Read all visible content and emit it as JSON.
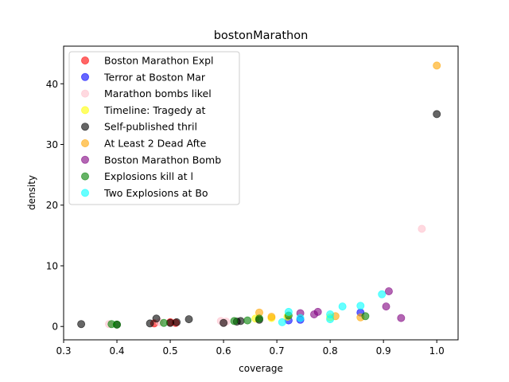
{
  "chart_data": {
    "type": "scatter",
    "title": "bostonMarathon",
    "xlabel": "coverage",
    "ylabel": "density",
    "xlim": [
      0.3,
      1.04
    ],
    "ylim": [
      -2.2,
      46.2
    ],
    "xticks": [
      "0.3",
      "0.4",
      "0.5",
      "0.6",
      "0.7",
      "0.8",
      "0.9",
      "1.0"
    ],
    "yticks": [
      "0",
      "10",
      "20",
      "30",
      "40"
    ],
    "legend_position": "top-left",
    "marker_alpha": 0.6,
    "series": [
      {
        "name": "Boston Marathon Expl",
        "color": "#ff0000",
        "points": [
          [
            0.47,
            0.5
          ],
          [
            0.5,
            0.7
          ],
          [
            0.51,
            0.6
          ]
        ]
      },
      {
        "name": "Terror at Boston Mar",
        "color": "#0000ff",
        "points": [
          [
            0.722,
            1.0
          ],
          [
            0.744,
            1.1
          ],
          [
            0.857,
            2.3
          ]
        ]
      },
      {
        "name": "Marathon bombs likel",
        "color": "#ffc0cb",
        "points": [
          [
            0.385,
            0.4
          ],
          [
            0.48,
            0.7
          ],
          [
            0.595,
            0.9
          ],
          [
            0.6,
            0.6
          ],
          [
            0.605,
            0.8
          ],
          [
            0.972,
            16.1
          ]
        ]
      },
      {
        "name": "Timeline: Tragedy at",
        "color": "#ffff00",
        "points": [
          [
            0.66,
            1.3
          ],
          [
            0.69,
            1.4
          ],
          [
            0.72,
            1.6
          ],
          [
            0.8,
            1.5
          ]
        ]
      },
      {
        "name": "Self-published thril",
        "color": "#000000",
        "points": [
          [
            0.333,
            0.4
          ],
          [
            0.4,
            0.3
          ],
          [
            0.462,
            0.5
          ],
          [
            0.474,
            1.3
          ],
          [
            0.5,
            0.6
          ],
          [
            0.512,
            0.7
          ],
          [
            0.535,
            1.2
          ],
          [
            0.6,
            0.6
          ],
          [
            0.625,
            0.8
          ],
          [
            0.632,
            0.9
          ],
          [
            0.667,
            1.1
          ],
          [
            1.0,
            35.0
          ]
        ]
      },
      {
        "name": "At Least 2 Dead Afte",
        "color": "#ffa500",
        "points": [
          [
            0.667,
            2.3
          ],
          [
            0.69,
            1.6
          ],
          [
            0.81,
            1.7
          ],
          [
            0.857,
            1.5
          ],
          [
            1.0,
            43.0
          ]
        ]
      },
      {
        "name": "Boston Marathon Bomb",
        "color": "#800080",
        "points": [
          [
            0.744,
            2.2
          ],
          [
            0.77,
            2.0
          ],
          [
            0.777,
            2.4
          ],
          [
            0.905,
            3.3
          ],
          [
            0.91,
            5.8
          ],
          [
            0.933,
            1.4
          ]
        ]
      },
      {
        "name": "Explosions kill at l",
        "color": "#008000",
        "points": [
          [
            0.39,
            0.4
          ],
          [
            0.4,
            0.3
          ],
          [
            0.488,
            0.6
          ],
          [
            0.62,
            0.9
          ],
          [
            0.645,
            1.0
          ],
          [
            0.667,
            1.3
          ],
          [
            0.722,
            1.8
          ],
          [
            0.866,
            1.7
          ]
        ]
      },
      {
        "name": "Two Explosions at Bo",
        "color": "#00ffff",
        "points": [
          [
            0.71,
            0.7
          ],
          [
            0.722,
            2.4
          ],
          [
            0.744,
            1.4
          ],
          [
            0.8,
            1.2
          ],
          [
            0.8,
            2.0
          ],
          [
            0.823,
            3.3
          ],
          [
            0.857,
            3.4
          ],
          [
            0.897,
            5.3
          ]
        ]
      }
    ]
  }
}
